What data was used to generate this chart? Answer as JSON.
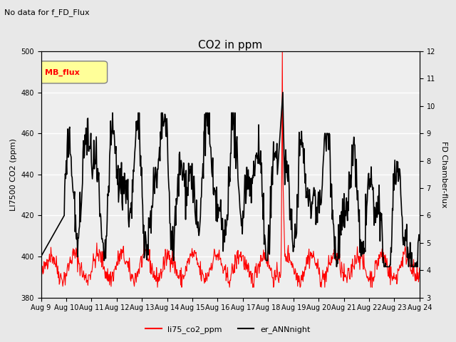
{
  "title": "CO2 in ppm",
  "top_label": "No data for f_FD_Flux",
  "ylabel_left": "LI7500 CO2 (ppm)",
  "ylabel_right": "FD Chamber-flux",
  "ylim_left": [
    380,
    500
  ],
  "ylim_right": [
    3.0,
    12.0
  ],
  "yticks_left": [
    380,
    400,
    420,
    440,
    460,
    480,
    500
  ],
  "yticks_right": [
    3.0,
    4.0,
    5.0,
    6.0,
    7.0,
    8.0,
    9.0,
    10.0,
    11.0,
    12.0
  ],
  "xticklabels": [
    "Aug 9",
    "Aug 10",
    "Aug 11",
    "Aug 12",
    "Aug 13",
    "Aug 14",
    "Aug 15",
    "Aug 16",
    "Aug 17",
    "Aug 18",
    "Aug 19",
    "Aug 20",
    "Aug 21",
    "Aug 22",
    "Aug 23",
    "Aug 24"
  ],
  "legend_labels": [
    "li75_co2_ppm",
    "er_ANNnight"
  ],
  "line_colors": [
    "red",
    "black"
  ],
  "background_color": "#e8e8e8",
  "axes_bg_color": "#eeeeee",
  "grid_color": "white",
  "mb_flux_box_color": "#ffff99",
  "mb_flux_text_color": "red"
}
